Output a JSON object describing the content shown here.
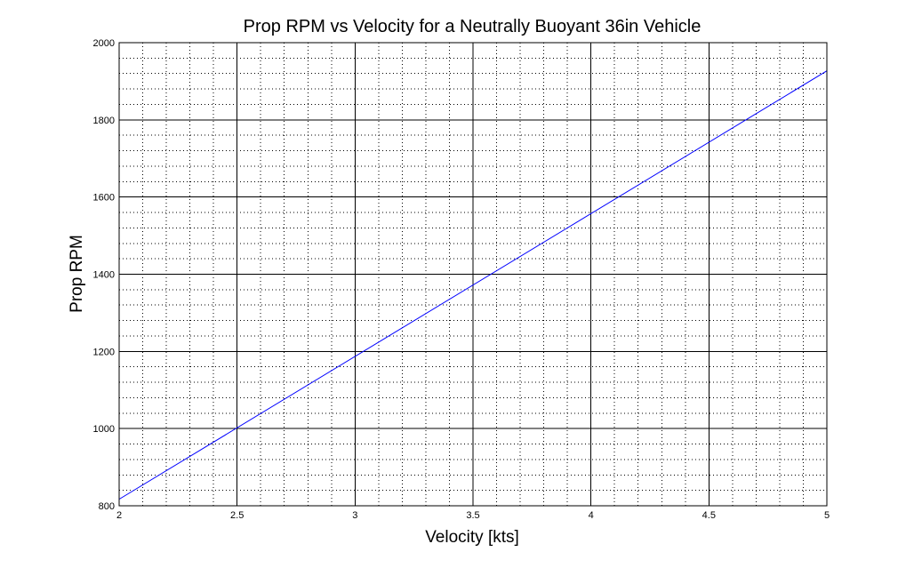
{
  "chart_data": {
    "type": "line",
    "title": "Prop RPM vs Velocity for a Neutrally Buoyant 36in Vehicle",
    "xlabel": "Velocity [kts]",
    "ylabel": "Prop RPM",
    "xlim": [
      2,
      5
    ],
    "ylim": [
      800,
      2000
    ],
    "x_ticks": [
      2,
      2.5,
      3,
      3.5,
      4,
      4.5,
      5
    ],
    "y_ticks": [
      800,
      1000,
      1200,
      1400,
      1600,
      1800,
      2000
    ],
    "x_tick_labels": [
      "2",
      "2.5",
      "3",
      "3.5",
      "4",
      "4.5",
      "5"
    ],
    "y_tick_labels": [
      "800",
      "1000",
      "1200",
      "1400",
      "1600",
      "1800",
      "2000"
    ],
    "x_minor_step": 0.1,
    "y_minor_step": 40,
    "grid": true,
    "minor_grid": true,
    "series": [
      {
        "color": "#0000ff",
        "x": [
          2,
          5
        ],
        "y": [
          817,
          1927
        ]
      }
    ]
  }
}
